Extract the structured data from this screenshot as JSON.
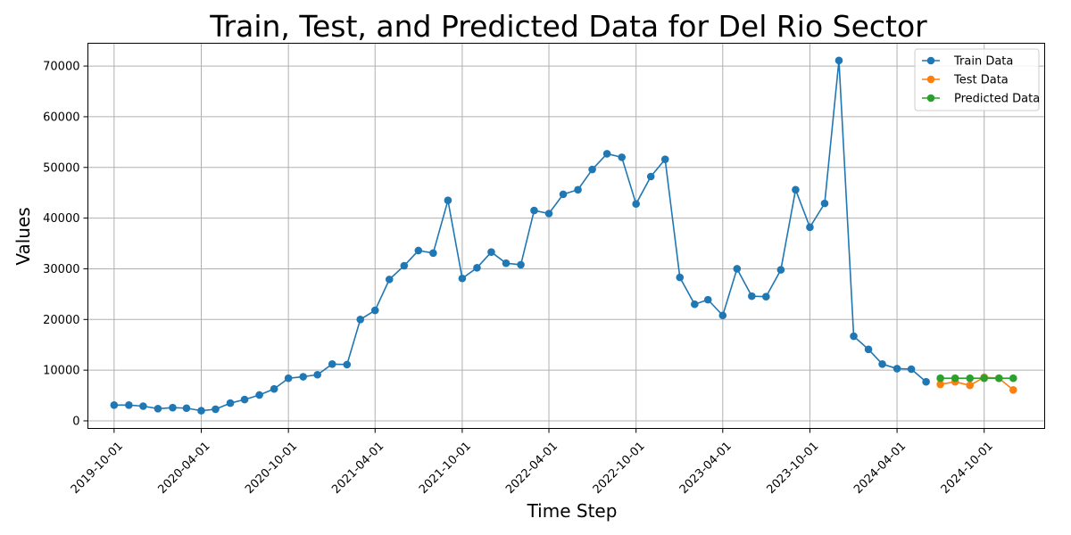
{
  "chart_data": {
    "type": "line",
    "title": "Train, Test, and Predicted Data for Del Rio Sector",
    "xlabel": "Time Step",
    "ylabel": "Values",
    "x_tick_labels": [
      "2019-10-01",
      "2020-04-01",
      "2020-10-01",
      "2021-04-01",
      "2021-10-01",
      "2022-04-01",
      "2022-10-01",
      "2023-04-01",
      "2023-10-01",
      "2024-04-01",
      "2024-10-01"
    ],
    "y_ticks": [
      0,
      10000,
      20000,
      30000,
      40000,
      50000,
      60000,
      70000
    ],
    "y_tick_labels": [
      "0",
      "10000",
      "20000",
      "30000",
      "40000",
      "50000",
      "60000",
      "70000"
    ],
    "xlim": [
      "2019-08-07",
      "2025-02-05"
    ],
    "ylim": [
      -1500,
      74500
    ],
    "grid": true,
    "legend_position": "top-right",
    "series": [
      {
        "name": "Train Data",
        "color": "#1f77b4",
        "points": [
          [
            "2019-10-01",
            3100
          ],
          [
            "2019-11-01",
            3100
          ],
          [
            "2019-12-01",
            2900
          ],
          [
            "2020-01-01",
            2400
          ],
          [
            "2020-02-01",
            2600
          ],
          [
            "2020-03-01",
            2500
          ],
          [
            "2020-04-01",
            2000
          ],
          [
            "2020-05-01",
            2300
          ],
          [
            "2020-06-01",
            3500
          ],
          [
            "2020-07-01",
            4200
          ],
          [
            "2020-08-01",
            5100
          ],
          [
            "2020-09-01",
            6300
          ],
          [
            "2020-10-01",
            8400
          ],
          [
            "2020-11-01",
            8700
          ],
          [
            "2020-12-01",
            9100
          ],
          [
            "2021-01-01",
            11200
          ],
          [
            "2021-02-01",
            11100
          ],
          [
            "2021-03-01",
            20000
          ],
          [
            "2021-04-01",
            21800
          ],
          [
            "2021-05-01",
            27900
          ],
          [
            "2021-06-01",
            30600
          ],
          [
            "2021-07-01",
            33600
          ],
          [
            "2021-08-01",
            33100
          ],
          [
            "2021-09-01",
            43500
          ],
          [
            "2021-10-01",
            28100
          ],
          [
            "2021-11-01",
            30200
          ],
          [
            "2021-12-01",
            33300
          ],
          [
            "2022-01-01",
            31100
          ],
          [
            "2022-02-01",
            30800
          ],
          [
            "2022-03-01",
            41500
          ],
          [
            "2022-04-01",
            40900
          ],
          [
            "2022-05-01",
            44700
          ],
          [
            "2022-06-01",
            45600
          ],
          [
            "2022-07-01",
            49600
          ],
          [
            "2022-08-01",
            52700
          ],
          [
            "2022-09-01",
            52000
          ],
          [
            "2022-10-01",
            42800
          ],
          [
            "2022-11-01",
            48200
          ],
          [
            "2022-12-01",
            51600
          ],
          [
            "2023-01-01",
            28300
          ],
          [
            "2023-02-01",
            23000
          ],
          [
            "2023-03-01",
            23900
          ],
          [
            "2023-04-01",
            20800
          ],
          [
            "2023-05-01",
            30000
          ],
          [
            "2023-06-01",
            24600
          ],
          [
            "2023-07-01",
            24500
          ],
          [
            "2023-08-01",
            29800
          ],
          [
            "2023-09-01",
            45600
          ],
          [
            "2023-10-01",
            38200
          ],
          [
            "2023-11-01",
            42900
          ],
          [
            "2023-12-01",
            71100
          ],
          [
            "2024-01-01",
            16700
          ],
          [
            "2024-02-01",
            14100
          ],
          [
            "2024-03-01",
            11200
          ],
          [
            "2024-04-01",
            10300
          ],
          [
            "2024-05-01",
            10200
          ],
          [
            "2024-06-01",
            7700
          ]
        ]
      },
      {
        "name": "Test Data",
        "color": "#ff7f0e",
        "points": [
          [
            "2024-07-01",
            7200
          ],
          [
            "2024-08-01",
            7700
          ],
          [
            "2024-09-01",
            7000
          ],
          [
            "2024-10-01",
            8600
          ],
          [
            "2024-11-01",
            8400
          ],
          [
            "2024-12-01",
            6100
          ]
        ]
      },
      {
        "name": "Predicted Data",
        "color": "#2ca02c",
        "points": [
          [
            "2024-07-01",
            8400
          ],
          [
            "2024-08-01",
            8400
          ],
          [
            "2024-09-01",
            8400
          ],
          [
            "2024-10-01",
            8400
          ],
          [
            "2024-11-01",
            8400
          ],
          [
            "2024-12-01",
            8400
          ]
        ]
      }
    ]
  }
}
